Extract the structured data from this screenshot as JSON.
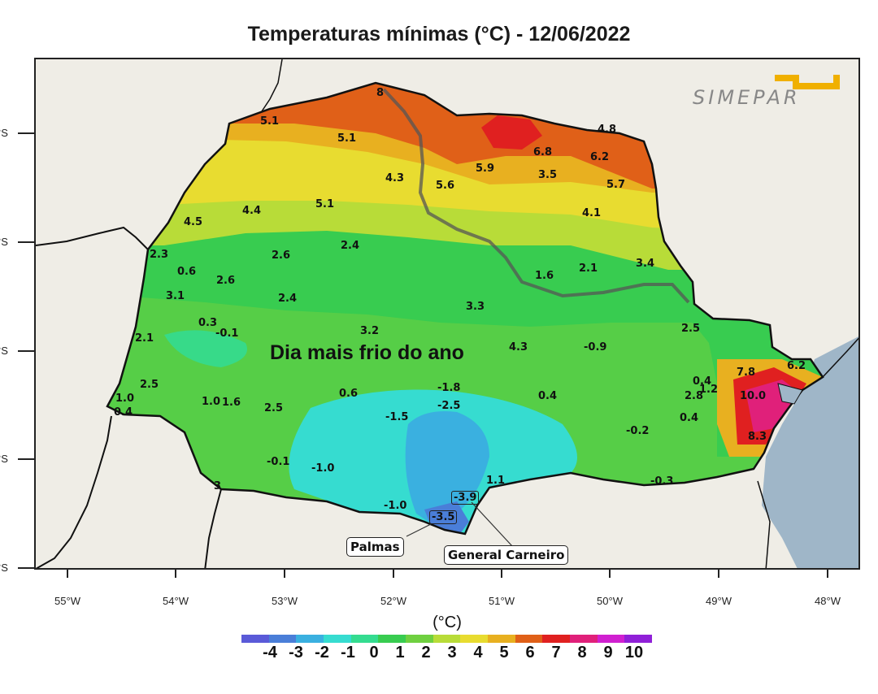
{
  "title": "Temperaturas mínimas (°C) - 12/06/2022",
  "logo_text": "SIMEPAR",
  "annotation": "Dia mais frio do ano",
  "unit_label": "(°C)",
  "lat_labels": [
    "°S",
    "°S",
    "°S",
    "°S",
    "°S"
  ],
  "lon_labels": [
    "55°W",
    "54°W",
    "53°W",
    "52°W",
    "51°W",
    "50°W",
    "49°W",
    "48°W"
  ],
  "colorbar": {
    "colors": [
      "#5a5ad8",
      "#4a7ed8",
      "#3ab0e0",
      "#36dcd0",
      "#34dc90",
      "#38cc50",
      "#6fd040",
      "#b8dc38",
      "#e8dc30",
      "#e8b020",
      "#e06018",
      "#e02020",
      "#e0207a",
      "#d020d0",
      "#9020d8"
    ],
    "labels": [
      "-4",
      "-3",
      "-2",
      "-1",
      "0",
      "1",
      "2",
      "3",
      "4",
      "5",
      "6",
      "7",
      "8",
      "9",
      "10"
    ]
  },
  "station_values": [
    {
      "text": "5.1"
    },
    {
      "text": "5.1"
    },
    {
      "text": "4.8"
    },
    {
      "text": "6.8"
    },
    {
      "text": "6.2"
    },
    {
      "text": "4.3"
    },
    {
      "text": "5.6"
    },
    {
      "text": "5.9"
    },
    {
      "text": "3.5"
    },
    {
      "text": "5.7"
    },
    {
      "text": "4.5"
    },
    {
      "text": "4.4"
    },
    {
      "text": "5.1"
    },
    {
      "text": "4.1"
    },
    {
      "text": "2.3"
    },
    {
      "text": "2.6"
    },
    {
      "text": "2.4"
    },
    {
      "text": "0.6"
    },
    {
      "text": "2.6"
    },
    {
      "text": "1.6"
    },
    {
      "text": "2.1"
    },
    {
      "text": "3.4"
    },
    {
      "text": "3.1"
    },
    {
      "text": "2.4"
    },
    {
      "text": "3.3"
    },
    {
      "text": "0.3"
    },
    {
      "text": "-0.1"
    },
    {
      "text": "2.1"
    },
    {
      "text": "3.2"
    },
    {
      "text": "2.5"
    },
    {
      "text": "4.3"
    },
    {
      "text": "-0.9"
    },
    {
      "text": "2.5"
    },
    {
      "text": "7.8"
    },
    {
      "text": "6.2"
    },
    {
      "text": "-1.8"
    },
    {
      "text": "0.4"
    },
    {
      "text": "1.0"
    },
    {
      "text": "1.0"
    },
    {
      "text": "1.6"
    },
    {
      "text": "0.6"
    },
    {
      "text": "-2.5"
    },
    {
      "text": "0.4"
    },
    {
      "text": "2.8"
    },
    {
      "text": "1.2"
    },
    {
      "text": "10.0"
    },
    {
      "text": "0.4"
    },
    {
      "text": "2.5"
    },
    {
      "text": "-1.5"
    },
    {
      "text": "0.4"
    },
    {
      "text": "-0.2"
    },
    {
      "text": "8.3"
    },
    {
      "text": "-0.1"
    },
    {
      "text": "-1.0"
    },
    {
      "text": "1.1"
    },
    {
      "text": "-1.0"
    },
    {
      "text": "8"
    },
    {
      "text": "3"
    },
    {
      "text": "-0.3"
    }
  ],
  "boxed_values": [
    {
      "text": "-3.9"
    },
    {
      "text": "-3.5"
    }
  ],
  "place_labels": {
    "palmas": "Palmas",
    "general_carneiro": "General Carneiro"
  }
}
